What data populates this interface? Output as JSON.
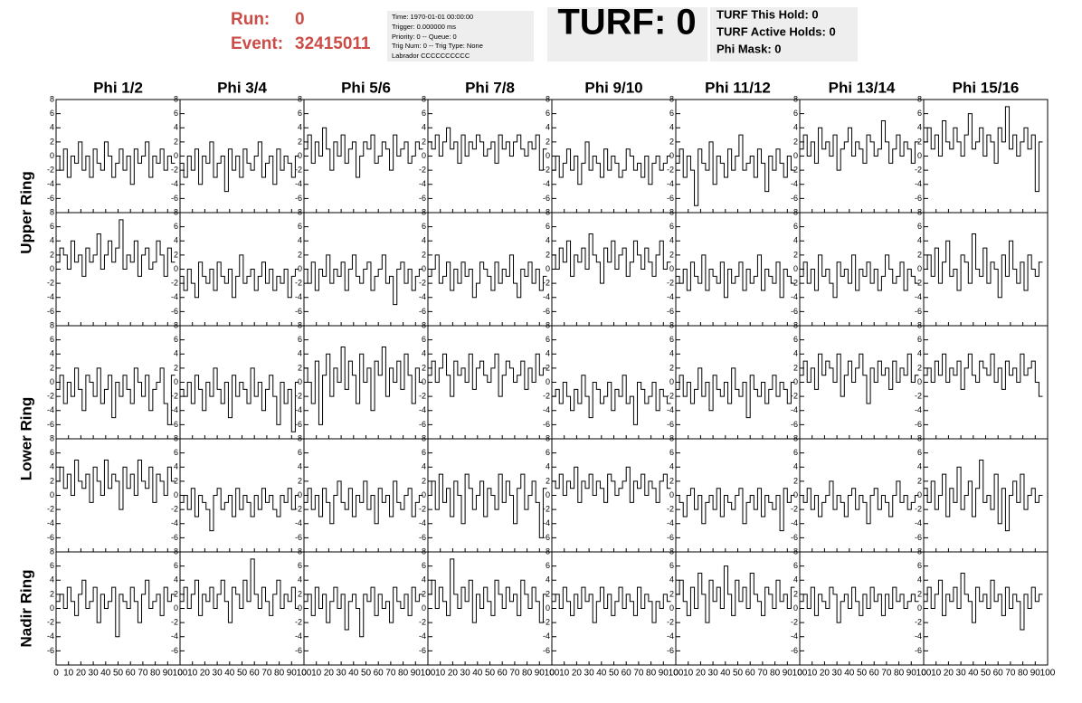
{
  "header": {
    "run_label": "Run:",
    "run": "0",
    "event_label": "Event:",
    "event": "32415011"
  },
  "info": [
    "Time: 1970-01-01 00:00:00",
    "Trigger: 0.000000 ms",
    "Priority: 0 -- Queue: 0",
    "Trig Num: 0 -- Trig Type: None",
    "Labrador CCCCCCCCCC"
  ],
  "turf": "TURF: 0",
  "turf_info": [
    "TURF This Hold: 0",
    "TURF Active Holds: 0",
    "Phi Mask: 0"
  ],
  "chart_data": {
    "type": "waveform-grid",
    "columns": [
      "Phi 1/2",
      "Phi 3/4",
      "Phi 5/6",
      "Phi 7/8",
      "Phi 9/10",
      "Phi 11/12",
      "Phi 13/14",
      "Phi 15/16"
    ],
    "rings": [
      "Upper Ring",
      "Lower Ring",
      "Nadir Ring"
    ],
    "x": [
      0,
      3,
      6,
      9,
      12,
      15,
      18,
      21,
      24,
      27,
      30,
      33,
      36,
      39,
      42,
      45,
      48,
      51,
      54,
      57,
      60,
      63,
      66,
      69,
      72,
      75,
      78,
      81,
      84,
      87,
      90,
      93
    ],
    "xlim": [
      0,
      100
    ],
    "xticks": [
      0,
      10,
      20,
      30,
      40,
      50,
      60,
      70,
      80,
      90,
      100
    ],
    "ylim": [
      -8,
      8
    ],
    "yticks": [
      -6,
      -4,
      -2,
      0,
      2,
      4,
      6,
      8
    ],
    "color": "#000000",
    "panels": [
      [
        [
          0,
          -2,
          1,
          -3,
          0,
          -1,
          2,
          -2,
          0,
          -3,
          1,
          -1,
          -2,
          2,
          0,
          -3,
          -1,
          1,
          -2,
          0,
          -4,
          1,
          -1,
          0,
          2,
          -3,
          0,
          -1,
          1,
          -2,
          0,
          -1
        ],
        [
          -1,
          -3,
          0,
          -2,
          1,
          -4,
          0,
          -1,
          2,
          -3,
          -1,
          0,
          -5,
          1,
          -2,
          0,
          -3,
          1,
          -1,
          -2,
          0,
          2,
          -3,
          -1,
          0,
          -4,
          1,
          -2,
          0,
          -1,
          -3,
          0
        ],
        [
          1,
          3,
          -1,
          2,
          0,
          4,
          1,
          -2,
          2,
          0,
          3,
          -1,
          1,
          2,
          -3,
          0,
          2,
          1,
          3,
          -1,
          0,
          2,
          1,
          -2,
          3,
          0,
          1,
          2,
          -1,
          0,
          2,
          1
        ],
        [
          2,
          1,
          3,
          0,
          2,
          4,
          1,
          2,
          -1,
          3,
          0,
          2,
          1,
          3,
          2,
          0,
          1,
          2,
          -1,
          3,
          1,
          2,
          0,
          2,
          3,
          1,
          0,
          2,
          1,
          3,
          -2,
          1
        ],
        [
          -2,
          0,
          -3,
          -1,
          1,
          -2,
          0,
          -4,
          -1,
          2,
          -2,
          0,
          -1,
          -3,
          1,
          -2,
          0,
          -1,
          -3,
          -2,
          1,
          0,
          -2,
          -1,
          -3,
          0,
          -4,
          -1,
          0,
          -2,
          -1,
          0
        ],
        [
          -1,
          1,
          -3,
          0,
          -2,
          -7,
          1,
          -1,
          -2,
          2,
          -4,
          0,
          -1,
          -3,
          1,
          -2,
          0,
          3,
          -2,
          -1,
          0,
          -3,
          1,
          -1,
          -5,
          0,
          -2,
          1,
          -1,
          -3,
          0,
          -2
        ],
        [
          1,
          3,
          0,
          2,
          -1,
          4,
          1,
          2,
          0,
          3,
          -2,
          1,
          2,
          4,
          0,
          2,
          1,
          -1,
          3,
          2,
          0,
          1,
          5,
          2,
          -1,
          1,
          3,
          0,
          2,
          1,
          -1,
          2
        ],
        [
          2,
          4,
          1,
          3,
          0,
          5,
          2,
          1,
          4,
          2,
          0,
          3,
          6,
          1,
          2,
          4,
          0,
          3,
          2,
          -1,
          4,
          2,
          7,
          1,
          3,
          0,
          2,
          4,
          1,
          3,
          -5,
          2
        ]
      ],
      [
        [
          1,
          3,
          2,
          0,
          4,
          1,
          2,
          -1,
          3,
          1,
          2,
          5,
          0,
          2,
          4,
          1,
          3,
          7,
          0,
          2,
          1,
          4,
          -1,
          2,
          3,
          0,
          1,
          4,
          2,
          -1,
          3,
          1
        ],
        [
          -1,
          -3,
          0,
          -2,
          -4,
          1,
          -1,
          -2,
          0,
          -3,
          1,
          -1,
          -2,
          0,
          -4,
          -1,
          2,
          -2,
          -1,
          0,
          -3,
          -1,
          1,
          -2,
          0,
          -3,
          -1,
          -2,
          0,
          -4,
          -1,
          0
        ],
        [
          0,
          -2,
          1,
          -3,
          0,
          -1,
          2,
          -2,
          0,
          -1,
          1,
          -3,
          0,
          2,
          -1,
          -2,
          0,
          1,
          -3,
          -1,
          0,
          2,
          -2,
          -1,
          -5,
          0,
          1,
          -2,
          0,
          -3,
          -1,
          0
        ],
        [
          -1,
          0,
          2,
          -2,
          -1,
          1,
          -3,
          0,
          -2,
          1,
          -1,
          0,
          -4,
          -2,
          1,
          0,
          -1,
          -3,
          1,
          -2,
          0,
          -1,
          2,
          -2,
          -4,
          0,
          -1,
          1,
          -2,
          0,
          -3,
          -1
        ],
        [
          2,
          0,
          3,
          1,
          4,
          -1,
          2,
          1,
          3,
          0,
          5,
          2,
          1,
          -2,
          3,
          1,
          4,
          0,
          2,
          3,
          -1,
          1,
          4,
          2,
          0,
          3,
          1,
          -1,
          2,
          4,
          0,
          1
        ],
        [
          -1,
          -2,
          0,
          -3,
          1,
          -1,
          -2,
          2,
          -3,
          0,
          -1,
          -2,
          1,
          -4,
          0,
          -2,
          -1,
          1,
          -3,
          0,
          -2,
          -1,
          2,
          -3,
          0,
          -1,
          -2,
          1,
          -4,
          0,
          -1,
          -2
        ],
        [
          -1,
          1,
          -2,
          0,
          -3,
          2,
          -1,
          0,
          -2,
          -4,
          1,
          -1,
          0,
          -2,
          2,
          -3,
          0,
          -1,
          1,
          -2,
          0,
          -3,
          -1,
          2,
          0,
          -2,
          -1,
          1,
          -3,
          0,
          -1,
          -2
        ],
        [
          0,
          2,
          -1,
          3,
          -2,
          1,
          4,
          -1,
          0,
          -3,
          2,
          1,
          -2,
          5,
          0,
          -1,
          3,
          -2,
          1,
          0,
          -4,
          2,
          -1,
          4,
          0,
          -2,
          1,
          -3,
          2,
          0,
          -1,
          1
        ]
      ],
      [
        [
          -1,
          1,
          -3,
          0,
          -2,
          2,
          -1,
          -4,
          1,
          0,
          -2,
          2,
          -3,
          -1,
          1,
          -5,
          0,
          -2,
          1,
          -1,
          -3,
          2,
          0,
          -2,
          1,
          -4,
          -1,
          0,
          2,
          -3,
          -6,
          1
        ],
        [
          -1,
          -2,
          0,
          -3,
          1,
          -1,
          -4,
          0,
          -2,
          2,
          -1,
          -3,
          0,
          -5,
          1,
          -2,
          0,
          -1,
          -3,
          2,
          -2,
          0,
          -4,
          -1,
          1,
          -2,
          -6,
          0,
          -3,
          -1,
          -7,
          0
        ],
        [
          2,
          0,
          -3,
          3,
          -6,
          1,
          4,
          -2,
          2,
          0,
          5,
          -1,
          3,
          1,
          -3,
          4,
          0,
          2,
          -4,
          3,
          1,
          5,
          -2,
          2,
          0,
          3,
          -1,
          4,
          1,
          -3,
          2,
          0
        ],
        [
          1,
          3,
          0,
          2,
          4,
          1,
          -2,
          3,
          1,
          2,
          0,
          4,
          -1,
          2,
          3,
          1,
          0,
          2,
          4,
          -2,
          1,
          3,
          2,
          0,
          1,
          3,
          -1,
          2,
          0,
          4,
          1,
          2
        ],
        [
          -2,
          -1,
          -3,
          0,
          -2,
          -4,
          -1,
          -3,
          1,
          -2,
          -5,
          0,
          -1,
          -3,
          -2,
          0,
          -4,
          -1,
          -2,
          1,
          -3,
          -2,
          -6,
          0,
          -1,
          -3,
          -2,
          0,
          -4,
          -1,
          -2,
          -3
        ],
        [
          -1,
          1,
          -2,
          0,
          -3,
          -1,
          2,
          -2,
          0,
          -4,
          1,
          -1,
          -2,
          0,
          -3,
          2,
          -1,
          -2,
          0,
          -5,
          1,
          -1,
          -2,
          0,
          -3,
          -1,
          1,
          -2,
          0,
          -1,
          -3,
          0
        ],
        [
          1,
          3,
          0,
          2,
          -1,
          4,
          1,
          3,
          2,
          0,
          4,
          -2,
          1,
          3,
          0,
          2,
          4,
          1,
          -3,
          2,
          0,
          3,
          1,
          2,
          -1,
          3,
          0,
          2,
          1,
          4,
          0,
          1
        ],
        [
          1,
          2,
          0,
          3,
          1,
          4,
          0,
          2,
          1,
          3,
          -1,
          2,
          4,
          1,
          0,
          3,
          2,
          1,
          4,
          0,
          2,
          -1,
          3,
          1,
          2,
          0,
          4,
          1,
          2,
          3,
          0,
          -2
        ]
      ],
      [
        [
          2,
          4,
          1,
          3,
          0,
          5,
          2,
          1,
          3,
          -1,
          4,
          2,
          0,
          5,
          1,
          3,
          2,
          -2,
          4,
          1,
          3,
          0,
          5,
          2,
          1,
          4,
          -1,
          3,
          2,
          0,
          4,
          2
        ],
        [
          -1,
          0,
          -2,
          1,
          -3,
          0,
          -1,
          -2,
          -5,
          0,
          1,
          -2,
          -1,
          0,
          -3,
          1,
          -2,
          0,
          -1,
          -3,
          0,
          -2,
          1,
          -1,
          0,
          -2,
          -3,
          0,
          -1,
          1,
          -2,
          0
        ],
        [
          -1,
          1,
          -2,
          0,
          -3,
          1,
          -1,
          -4,
          0,
          2,
          -1,
          -2,
          1,
          -3,
          0,
          -1,
          2,
          -2,
          0,
          -4,
          1,
          -1,
          0,
          -3,
          2,
          -1,
          -2,
          0,
          1,
          -3,
          -1,
          0
        ],
        [
          0,
          2,
          -2,
          3,
          -1,
          1,
          -3,
          2,
          0,
          -4,
          3,
          1,
          -2,
          0,
          2,
          -3,
          1,
          0,
          -2,
          3,
          -1,
          2,
          0,
          -4,
          1,
          3,
          -2,
          0,
          2,
          -1,
          -6,
          1
        ],
        [
          2,
          1,
          3,
          0,
          2,
          1,
          4,
          -1,
          2,
          1,
          3,
          0,
          2,
          1,
          -1,
          3,
          2,
          0,
          1,
          2,
          4,
          -1,
          2,
          1,
          3,
          0,
          2,
          1,
          -1,
          2,
          3,
          1
        ],
        [
          0,
          -1,
          -3,
          0,
          1,
          -2,
          0,
          -4,
          -1,
          0,
          -2,
          1,
          -3,
          0,
          -1,
          -2,
          0,
          1,
          -4,
          -1,
          0,
          -2,
          1,
          -3,
          0,
          -1,
          -2,
          0,
          -5,
          1,
          -1,
          0
        ],
        [
          0,
          -1,
          1,
          -2,
          0,
          -3,
          -1,
          0,
          2,
          -2,
          0,
          -1,
          -3,
          0,
          1,
          -2,
          0,
          -1,
          -4,
          0,
          1,
          -2,
          0,
          -1,
          -3,
          0,
          2,
          -1,
          0,
          -2,
          -1,
          0
        ],
        [
          1,
          -1,
          2,
          -2,
          0,
          3,
          -3,
          1,
          -1,
          4,
          -2,
          0,
          2,
          -3,
          1,
          5,
          -1,
          0,
          -2,
          3,
          -4,
          1,
          -5,
          0,
          2,
          -1,
          3,
          -2,
          0,
          1,
          -1,
          0
        ]
      ],
      [
        [
          1,
          2,
          0,
          3,
          1,
          -1,
          2,
          4,
          0,
          1,
          3,
          -2,
          2,
          0,
          1,
          3,
          -4,
          2,
          1,
          0,
          3,
          1,
          -2,
          2,
          4,
          0,
          1,
          2,
          -1,
          3,
          1,
          2
        ],
        [
          1,
          3,
          0,
          2,
          4,
          -1,
          2,
          1,
          3,
          0,
          2,
          4,
          1,
          -2,
          3,
          2,
          0,
          4,
          1,
          7,
          2,
          0,
          3,
          1,
          -1,
          2,
          4,
          0,
          2,
          1,
          3,
          0
        ],
        [
          1,
          2,
          -1,
          3,
          0,
          2,
          -2,
          1,
          3,
          0,
          2,
          -3,
          1,
          2,
          0,
          -4,
          2,
          1,
          3,
          -1,
          2,
          0,
          1,
          -2,
          3,
          1,
          0,
          2,
          -1,
          3,
          1,
          2
        ],
        [
          2,
          4,
          0,
          3,
          1,
          -1,
          7,
          2,
          0,
          3,
          1,
          4,
          -2,
          2,
          0,
          3,
          1,
          -1,
          4,
          2,
          0,
          3,
          1,
          2,
          -1,
          4,
          2,
          0,
          3,
          1,
          -2,
          2
        ],
        [
          1,
          2,
          0,
          3,
          1,
          -1,
          2,
          0,
          3,
          1,
          2,
          -2,
          1,
          3,
          0,
          2,
          -1,
          1,
          3,
          0,
          2,
          1,
          -1,
          3,
          0,
          2,
          1,
          -2,
          1,
          0,
          2,
          1
        ],
        [
          2,
          4,
          1,
          -1,
          3,
          0,
          5,
          2,
          -2,
          4,
          1,
          3,
          0,
          6,
          2,
          -1,
          4,
          1,
          3,
          0,
          5,
          2,
          1,
          -1,
          3,
          2,
          0,
          4,
          1,
          2,
          0,
          3
        ],
        [
          1,
          2,
          0,
          3,
          -1,
          2,
          1,
          0,
          3,
          2,
          -2,
          1,
          2,
          0,
          3,
          1,
          -1,
          2,
          0,
          3,
          1,
          2,
          -1,
          2,
          0,
          3,
          1,
          2,
          0,
          1,
          2,
          1
        ],
        [
          1,
          3,
          0,
          2,
          4,
          -1,
          2,
          1,
          3,
          0,
          5,
          2,
          1,
          -2,
          3,
          1,
          2,
          0,
          4,
          1,
          2,
          -1,
          3,
          0,
          2,
          1,
          -3,
          2,
          0,
          3,
          1,
          2
        ]
      ]
    ]
  }
}
